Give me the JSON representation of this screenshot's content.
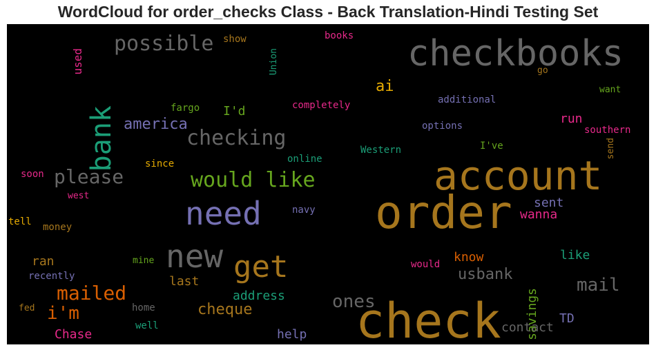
{
  "title": "WordCloud for order_checks Class - Back Translation-Hindi Testing Set",
  "background_color": "#000000",
  "words": [
    {
      "text": "checkbooks",
      "color": "#666666"
    },
    {
      "text": "account",
      "color": "#a6761d"
    },
    {
      "text": "order",
      "color": "#a6761d"
    },
    {
      "text": "check",
      "color": "#a6761d"
    },
    {
      "text": "need",
      "color": "#7570b3"
    },
    {
      "text": "new",
      "color": "#666666"
    },
    {
      "text": "get",
      "color": "#a6761d"
    },
    {
      "text": "would like",
      "color": "#66a61e"
    },
    {
      "text": "bank",
      "color": "#1b9e77"
    },
    {
      "text": "possible",
      "color": "#666666"
    },
    {
      "text": "checking",
      "color": "#666666"
    },
    {
      "text": "please",
      "color": "#666666"
    },
    {
      "text": "america",
      "color": "#7570b3"
    },
    {
      "text": "mailed",
      "color": "#d95f02"
    },
    {
      "text": "i'm",
      "color": "#d95f02"
    },
    {
      "text": "ones",
      "color": "#666666"
    },
    {
      "text": "mail",
      "color": "#666666"
    },
    {
      "text": "cheque",
      "color": "#a6761d"
    },
    {
      "text": "usbank",
      "color": "#666666"
    },
    {
      "text": "ai",
      "color": "#e6ab02"
    },
    {
      "text": "I'd",
      "color": "#66a61e"
    },
    {
      "text": "run",
      "color": "#e7298a"
    },
    {
      "text": "sent",
      "color": "#7570b3"
    },
    {
      "text": "wanna",
      "color": "#e7298a"
    },
    {
      "text": "know",
      "color": "#d95f02"
    },
    {
      "text": "like",
      "color": "#1b9e77"
    },
    {
      "text": "savings",
      "color": "#66a61e"
    },
    {
      "text": "address",
      "color": "#1b9e77"
    },
    {
      "text": "last",
      "color": "#a6761d"
    },
    {
      "text": "ran",
      "color": "#a6761d"
    },
    {
      "text": "help",
      "color": "#7570b3"
    },
    {
      "text": "contact",
      "color": "#666666"
    },
    {
      "text": "TD",
      "color": "#7570b3"
    },
    {
      "text": "Chase",
      "color": "#e7298a"
    },
    {
      "text": "used",
      "color": "#e7298a"
    },
    {
      "text": "show",
      "color": "#a6761d"
    },
    {
      "text": "books",
      "color": "#e7298a"
    },
    {
      "text": "Union",
      "color": "#1b9e77"
    },
    {
      "text": "go",
      "color": "#a6761d"
    },
    {
      "text": "want",
      "color": "#66a61e"
    },
    {
      "text": "additional",
      "color": "#7570b3"
    },
    {
      "text": "completely",
      "color": "#e7298a"
    },
    {
      "text": "fargo",
      "color": "#66a61e"
    },
    {
      "text": "options",
      "color": "#7570b3"
    },
    {
      "text": "southern",
      "color": "#e7298a"
    },
    {
      "text": "send",
      "color": "#a6761d"
    },
    {
      "text": "I've",
      "color": "#66a61e"
    },
    {
      "text": "Western",
      "color": "#1b9e77"
    },
    {
      "text": "online",
      "color": "#1b9e77"
    },
    {
      "text": "since",
      "color": "#e6ab02"
    },
    {
      "text": "soon",
      "color": "#e7298a"
    },
    {
      "text": "west",
      "color": "#e7298a"
    },
    {
      "text": "navy",
      "color": "#7570b3"
    },
    {
      "text": "tell",
      "color": "#e6ab02"
    },
    {
      "text": "money",
      "color": "#a6761d"
    },
    {
      "text": "mine",
      "color": "#66a61e"
    },
    {
      "text": "would",
      "color": "#e7298a"
    },
    {
      "text": "recently",
      "color": "#7570b3"
    },
    {
      "text": "fed",
      "color": "#a6761d"
    },
    {
      "text": "home",
      "color": "#666666"
    },
    {
      "text": "well",
      "color": "#1b9e77"
    }
  ]
}
